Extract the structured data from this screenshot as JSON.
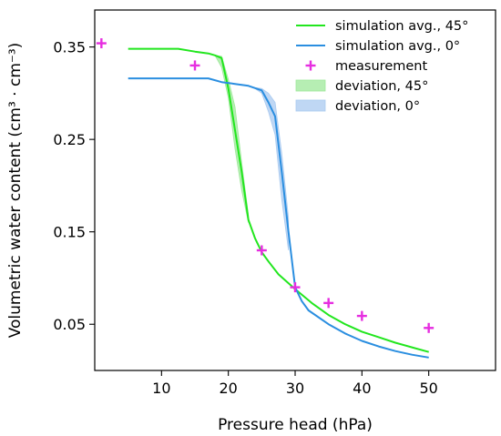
{
  "chart_data": {
    "type": "line",
    "xlabel": "Pressure head (hPa)",
    "ylabel": "Volumetric water content (cm³ · cm⁻³)",
    "xlim": [
      0,
      60
    ],
    "ylim": [
      0.0,
      0.39
    ],
    "x_ticks": [
      10,
      20,
      30,
      40,
      50
    ],
    "y_ticks": [
      0.05,
      0.15,
      0.25,
      0.35
    ],
    "x_tick_labels": [
      "10",
      "20",
      "30",
      "40",
      "50"
    ],
    "y_tick_labels": [
      "0.05",
      "0.15",
      "0.25",
      "0.35"
    ],
    "grid": false,
    "legend_position": "top-right",
    "series": [
      {
        "name": "simulation avg., 45°",
        "kind": "line",
        "color": "#22e61e",
        "x": [
          5,
          7.5,
          10,
          12.5,
          15,
          17,
          18,
          19,
          20,
          21,
          22,
          23,
          24,
          25,
          26,
          27.5,
          30,
          32.5,
          35,
          37.5,
          40,
          42.5,
          45,
          47.5,
          50
        ],
        "y": [
          0.348,
          0.348,
          0.348,
          0.348,
          0.345,
          0.343,
          0.341,
          0.338,
          0.305,
          0.26,
          0.215,
          0.163,
          0.143,
          0.128,
          0.118,
          0.104,
          0.088,
          0.073,
          0.06,
          0.05,
          0.042,
          0.036,
          0.03,
          0.025,
          0.02
        ]
      },
      {
        "name": "simulation avg., 0°",
        "kind": "line",
        "color": "#2a8ee0",
        "x": [
          5,
          7.5,
          10,
          12.5,
          15,
          17,
          19,
          21,
          23,
          25,
          26,
          27,
          28,
          29,
          30,
          31,
          32,
          35,
          37.5,
          40,
          42.5,
          45,
          47.5,
          50
        ],
        "y": [
          0.316,
          0.316,
          0.316,
          0.316,
          0.316,
          0.316,
          0.312,
          0.31,
          0.308,
          0.303,
          0.29,
          0.275,
          0.215,
          0.15,
          0.09,
          0.075,
          0.065,
          0.05,
          0.04,
          0.032,
          0.026,
          0.021,
          0.017,
          0.014
        ]
      },
      {
        "name": "measurement",
        "kind": "scatter",
        "color": "#e62ee0",
        "x": [
          1,
          15,
          25,
          30,
          35,
          40,
          50
        ],
        "y": [
          0.354,
          0.33,
          0.13,
          0.09,
          0.073,
          0.059,
          0.046
        ]
      },
      {
        "name": "deviation, 45°",
        "kind": "band",
        "color": "#9ee89a",
        "x": [
          17,
          18,
          19,
          20,
          21,
          22,
          23
        ],
        "lower": [
          0.343,
          0.341,
          0.328,
          0.295,
          0.24,
          0.195,
          0.16
        ],
        "upper": [
          0.343,
          0.341,
          0.34,
          0.315,
          0.285,
          0.225,
          0.168
        ]
      },
      {
        "name": "deviation, 0°",
        "kind": "band",
        "color": "#a9caf0",
        "x": [
          23,
          24,
          25,
          26,
          27,
          28,
          29
        ],
        "lower": [
          0.308,
          0.305,
          0.3,
          0.28,
          0.255,
          0.185,
          0.13
        ],
        "upper": [
          0.308,
          0.306,
          0.305,
          0.3,
          0.29,
          0.235,
          0.165
        ]
      }
    ]
  }
}
